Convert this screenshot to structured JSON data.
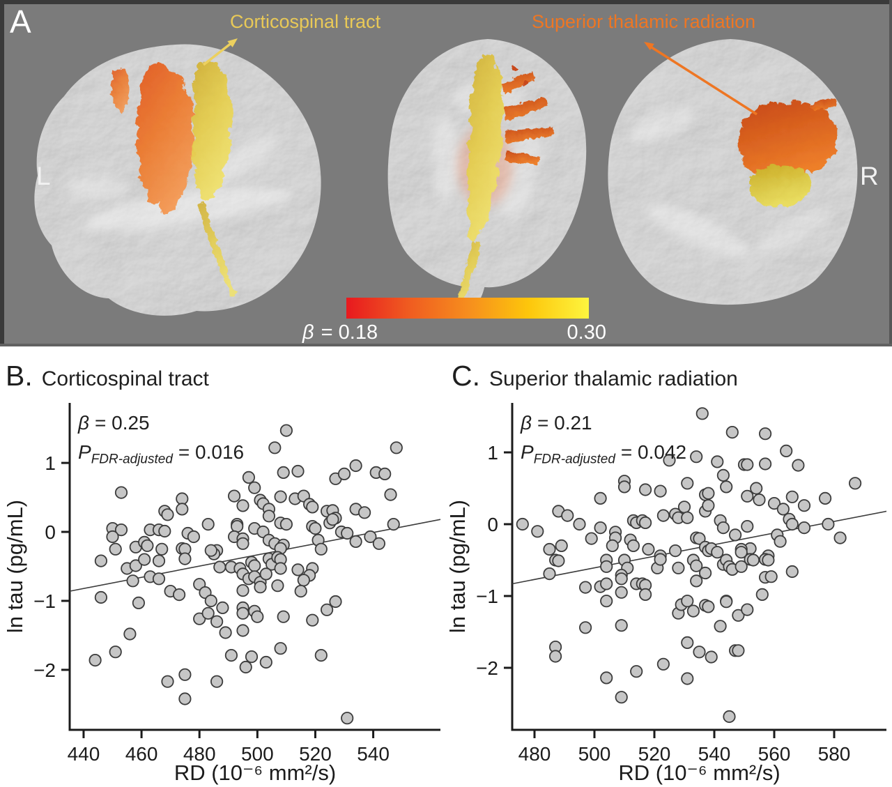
{
  "panel_a": {
    "label": "A",
    "left_marker": "L",
    "right_marker": "R",
    "background": "#7b7b7b",
    "tract_labels": [
      {
        "text": "Corticospinal tract",
        "color": "#e9c957"
      },
      {
        "text": "Superior thalamic radiation",
        "color": "#ee7623"
      }
    ],
    "colorbar": {
      "min_label_symbol": "β",
      "min_label_value": "= 0.18",
      "max_label": "0.30",
      "gradient": [
        "#e8191f",
        "#ef5a20",
        "#f68d1e",
        "#fdc60b",
        "#fdf53f"
      ]
    }
  },
  "panels": [
    {
      "letter": "B.",
      "title": "Corticospinal tract",
      "stats": {
        "beta_symbol": "β",
        "beta_value": "= 0.25",
        "p_symbol": "P",
        "p_subscript": "FDR-adjusted",
        "p_value": "= 0.016"
      }
    },
    {
      "letter": "C.",
      "title": "Superior thalamic radiation",
      "stats": {
        "beta_symbol": "β",
        "beta_value": "= 0.21",
        "p_symbol": "P",
        "p_subscript": "FDR-adjusted",
        "p_value": "= 0.042"
      }
    }
  ],
  "chart_data": [
    {
      "type": "scatter",
      "panel": "B",
      "title": "Corticospinal tract",
      "beta": 0.25,
      "p_fdr_adjusted": 0.016,
      "xlabel": "RD (10⁻⁶ mm²/s)",
      "ylabel": "ln tau (pg/mL)",
      "xlim": [
        435.2,
        563.2
      ],
      "ylim": [
        -2.87,
        1.87
      ],
      "x_ticks": [
        440,
        460,
        480,
        500,
        520,
        540
      ],
      "y_ticks": [
        1,
        0,
        -1,
        -2
      ],
      "legend": "none",
      "grid": false,
      "regression_line": {
        "x": [
          435.2,
          563.2
        ],
        "y": [
          -0.86,
          0.18
        ]
      },
      "style": {
        "point_fill": "#c6c6c6",
        "point_stroke": "#3c3c3c",
        "line_color": "#3c3c3c",
        "axis_color": "#1b1b1b"
      },
      "points": [
        [
          510,
          1.47
        ],
        [
          506,
          1.22
        ],
        [
          548,
          1.22
        ],
        [
          453,
          0.57
        ],
        [
          497,
          0.79
        ],
        [
          527,
          0.77
        ],
        [
          530,
          0.84
        ],
        [
          534,
          0.96
        ],
        [
          509,
          0.86
        ],
        [
          514,
          0.88
        ],
        [
          499,
          0.64
        ],
        [
          546,
          0.54
        ],
        [
          541,
          0.86
        ],
        [
          544,
          0.84
        ],
        [
          468,
          0.3
        ],
        [
          469,
          0.25
        ],
        [
          474,
          0.48
        ],
        [
          474,
          0.33
        ],
        [
          492,
          0.52
        ],
        [
          495,
          0.38
        ],
        [
          493,
          0.11
        ],
        [
          501,
          0.46
        ],
        [
          502,
          0.41
        ],
        [
          508,
          0.51
        ],
        [
          513,
          0.48
        ],
        [
          516,
          0.52
        ],
        [
          518,
          0.4
        ],
        [
          519,
          0.36
        ],
        [
          504,
          0.33
        ],
        [
          504,
          0.23
        ],
        [
          524,
          0.3
        ],
        [
          526,
          0.31
        ],
        [
          527,
          0.2
        ],
        [
          534,
          0.33
        ],
        [
          537,
          0.28
        ],
        [
          483,
          0.11
        ],
        [
          493,
          0.08
        ],
        [
          450,
          0.05
        ],
        [
          453,
          0.03
        ],
        [
          463,
          0.03
        ],
        [
          466,
          0.03
        ],
        [
          468,
          0.01
        ],
        [
          476,
          -0.02
        ],
        [
          478,
          -0.07
        ],
        [
          486,
          -0.27
        ],
        [
          485,
          -0.32
        ],
        [
          492,
          -0.07
        ],
        [
          495,
          -0.1
        ],
        [
          495,
          -0.17
        ],
        [
          499,
          0.05
        ],
        [
          502,
          0.0
        ],
        [
          508,
          0.13
        ],
        [
          510,
          0.11
        ],
        [
          519,
          0.08
        ],
        [
          520,
          0.05
        ],
        [
          525,
          0.13
        ],
        [
          526,
          0.18
        ],
        [
          529,
          0.0
        ],
        [
          531,
          -0.02
        ],
        [
          534,
          -0.14
        ],
        [
          539,
          -0.07
        ],
        [
          542,
          -0.17
        ],
        [
          547,
          0.11
        ],
        [
          450,
          -0.07
        ],
        [
          451,
          -0.25
        ],
        [
          458,
          -0.22
        ],
        [
          461,
          -0.15
        ],
        [
          462,
          -0.2
        ],
        [
          467,
          -0.25
        ],
        [
          474,
          -0.24
        ],
        [
          475,
          -0.25
        ],
        [
          484,
          -0.27
        ],
        [
          504,
          -0.12
        ],
        [
          506,
          -0.17
        ],
        [
          509,
          -0.19
        ],
        [
          508,
          -0.24
        ],
        [
          521,
          -0.12
        ],
        [
          522,
          -0.25
        ],
        [
          446,
          -0.42
        ],
        [
          455,
          -0.53
        ],
        [
          458,
          -0.49
        ],
        [
          461,
          -0.4
        ],
        [
          466,
          -0.42
        ],
        [
          475,
          -0.39
        ],
        [
          487,
          -0.51
        ],
        [
          491,
          -0.51
        ],
        [
          494,
          -0.53
        ],
        [
          495,
          -0.61
        ],
        [
          497,
          -0.68
        ],
        [
          498,
          -0.44
        ],
        [
          499,
          -0.49
        ],
        [
          499,
          -0.65
        ],
        [
          501,
          -0.73
        ],
        [
          501,
          -0.8
        ],
        [
          504,
          -0.39
        ],
        [
          505,
          -0.47
        ],
        [
          503,
          -0.61
        ],
        [
          507,
          -0.37
        ],
        [
          508,
          -0.4
        ],
        [
          508,
          -0.53
        ],
        [
          514,
          -0.55
        ],
        [
          519,
          -0.53
        ],
        [
          518,
          -0.63
        ],
        [
          516,
          -0.7
        ],
        [
          507,
          -0.78
        ],
        [
          515,
          -0.86
        ],
        [
          457,
          -0.71
        ],
        [
          463,
          -0.65
        ],
        [
          466,
          -0.68
        ],
        [
          446,
          -0.95
        ],
        [
          459,
          -1.03
        ],
        [
          470,
          -0.86
        ],
        [
          473,
          -0.91
        ],
        [
          480,
          -0.76
        ],
        [
          482,
          -0.88
        ],
        [
          484,
          -1.0
        ],
        [
          480,
          -1.26
        ],
        [
          483,
          -1.18
        ],
        [
          486,
          -1.3
        ],
        [
          488,
          -1.1
        ],
        [
          495,
          -0.85
        ],
        [
          495,
          -1.1
        ],
        [
          495,
          -1.18
        ],
        [
          499,
          -1.15
        ],
        [
          500,
          -1.23
        ],
        [
          489,
          -1.46
        ],
        [
          495,
          -1.43
        ],
        [
          509,
          -1.23
        ],
        [
          508,
          -1.69
        ],
        [
          519,
          -1.28
        ],
        [
          522,
          -1.79
        ],
        [
          524,
          -1.13
        ],
        [
          527,
          -1.01
        ],
        [
          456,
          -1.48
        ],
        [
          451,
          -1.74
        ],
        [
          444,
          -1.86
        ],
        [
          491,
          -1.79
        ],
        [
          498,
          -1.81
        ],
        [
          496,
          -1.96
        ],
        [
          503,
          -1.89
        ],
        [
          469,
          -2.17
        ],
        [
          475,
          -2.07
        ],
        [
          475,
          -2.42
        ],
        [
          486,
          -2.17
        ],
        [
          531,
          -2.7
        ]
      ]
    },
    {
      "type": "scatter",
      "panel": "C",
      "title": "Superior thalamic radiation",
      "beta": 0.21,
      "p_fdr_adjusted": 0.042,
      "xlabel": "RD (10⁻⁶ mm²/s)",
      "ylabel": "ln tau (pg/mL)",
      "xlim": [
        472.56,
        597.44
      ],
      "ylim": [
        -2.864,
        1.689
      ],
      "x_ticks": [
        480,
        500,
        520,
        540,
        560,
        580
      ],
      "y_ticks": [
        1,
        0,
        -1,
        -2
      ],
      "legend": "none",
      "grid": false,
      "regression_line": {
        "x": [
          472.56,
          597.44
        ],
        "y": [
          -0.83,
          0.18
        ]
      },
      "style": {
        "point_fill": "#c6c6c6",
        "point_stroke": "#3c3c3c",
        "line_color": "#3c3c3c",
        "axis_color": "#1b1b1b"
      },
      "points": [
        [
          536,
          1.54
        ],
        [
          546,
          1.28
        ],
        [
          557,
          1.26
        ],
        [
          564,
          1.02
        ],
        [
          525,
          0.89
        ],
        [
          534,
          0.94
        ],
        [
          541,
          0.87
        ],
        [
          550,
          0.83
        ],
        [
          551,
          0.83
        ],
        [
          557,
          0.84
        ],
        [
          568,
          0.82
        ],
        [
          587,
          0.57
        ],
        [
          510,
          0.6
        ],
        [
          510,
          0.52
        ],
        [
          517,
          0.48
        ],
        [
          522,
          0.46
        ],
        [
          531,
          0.57
        ],
        [
          537,
          0.41
        ],
        [
          538,
          0.43
        ],
        [
          543,
          0.68
        ],
        [
          544,
          0.52
        ],
        [
          551,
          0.39
        ],
        [
          554,
          0.5
        ],
        [
          555,
          0.34
        ],
        [
          560,
          0.29
        ],
        [
          563,
          0.21
        ],
        [
          566,
          0.38
        ],
        [
          570,
          0.26
        ],
        [
          577,
          0.36
        ],
        [
          502,
          0.36
        ],
        [
          488,
          0.18
        ],
        [
          491,
          0.12
        ],
        [
          495,
          0.0
        ],
        [
          476,
          0.0
        ],
        [
          481,
          -0.1
        ],
        [
          502,
          -0.05
        ],
        [
          507,
          -0.11
        ],
        [
          507,
          -0.19
        ],
        [
          513,
          0.05
        ],
        [
          514,
          0.02
        ],
        [
          516,
          0.05
        ],
        [
          517,
          0.02
        ],
        [
          523,
          0.12
        ],
        [
          527,
          0.14
        ],
        [
          528,
          0.09
        ],
        [
          530,
          0.24
        ],
        [
          531,
          0.09
        ],
        [
          537,
          0.18
        ],
        [
          538,
          0.26
        ],
        [
          542,
          0.05
        ],
        [
          543,
          -0.05
        ],
        [
          551,
          -0.03
        ],
        [
          552,
          -0.34
        ],
        [
          561,
          -0.15
        ],
        [
          562,
          -0.24
        ],
        [
          565,
          0.07
        ],
        [
          566,
          0.0
        ],
        [
          570,
          -0.05
        ],
        [
          578,
          0.0
        ],
        [
          582,
          -0.19
        ],
        [
          485,
          -0.35
        ],
        [
          489,
          -0.3
        ],
        [
          499,
          -0.2
        ],
        [
          506,
          -0.3
        ],
        [
          512,
          -0.22
        ],
        [
          513,
          -0.3
        ],
        [
          518,
          -0.35
        ],
        [
          522,
          -0.44
        ],
        [
          527,
          -0.37
        ],
        [
          534,
          -0.19
        ],
        [
          535,
          -0.2
        ],
        [
          537,
          -0.32
        ],
        [
          538,
          -0.37
        ],
        [
          539,
          -0.34
        ],
        [
          541,
          -0.39
        ],
        [
          547,
          -0.15
        ],
        [
          549,
          -0.35
        ],
        [
          549,
          -0.39
        ],
        [
          558,
          -0.44
        ],
        [
          487,
          -0.5
        ],
        [
          488,
          -0.51
        ],
        [
          485,
          -0.69
        ],
        [
          504,
          -0.5
        ],
        [
          504,
          -0.59
        ],
        [
          510,
          -0.5
        ],
        [
          511,
          -0.61
        ],
        [
          509,
          -0.71
        ],
        [
          509,
          -0.76
        ],
        [
          497,
          -0.88
        ],
        [
          502,
          -0.87
        ],
        [
          504,
          -0.83
        ],
        [
          514,
          -0.83
        ],
        [
          516,
          -0.83
        ],
        [
          517,
          -0.85
        ],
        [
          517,
          -0.98
        ],
        [
          509,
          -0.95
        ],
        [
          504,
          -1.07
        ],
        [
          521,
          -0.61
        ],
        [
          522,
          -0.49
        ],
        [
          528,
          -0.61
        ],
        [
          533,
          -0.5
        ],
        [
          534,
          -0.58
        ],
        [
          537,
          -0.68
        ],
        [
          534,
          -0.79
        ],
        [
          537,
          -1.13
        ],
        [
          538,
          -1.15
        ],
        [
          528,
          -1.24
        ],
        [
          529,
          -1.12
        ],
        [
          531,
          -1.07
        ],
        [
          533,
          -1.21
        ],
        [
          543,
          -0.56
        ],
        [
          544,
          -0.5
        ],
        [
          545,
          -0.59
        ],
        [
          546,
          -0.63
        ],
        [
          549,
          -0.59
        ],
        [
          552,
          -0.49
        ],
        [
          553,
          -0.5
        ],
        [
          544,
          -1.07
        ],
        [
          544,
          -1.08
        ],
        [
          542,
          -1.42
        ],
        [
          548,
          -1.27
        ],
        [
          551,
          -1.19
        ],
        [
          556,
          -0.98
        ],
        [
          557,
          -0.74
        ],
        [
          559,
          -0.73
        ],
        [
          557,
          -0.49
        ],
        [
          558,
          -0.5
        ],
        [
          566,
          -0.66
        ],
        [
          497,
          -1.44
        ],
        [
          509,
          -1.41
        ],
        [
          487,
          -1.71
        ],
        [
          487,
          -1.84
        ],
        [
          531,
          -1.65
        ],
        [
          535,
          -1.78
        ],
        [
          539,
          -1.85
        ],
        [
          547,
          -1.76
        ],
        [
          548,
          -1.76
        ],
        [
          523,
          -1.95
        ],
        [
          514,
          -2.05
        ],
        [
          504,
          -2.14
        ],
        [
          531,
          -2.15
        ],
        [
          509,
          -2.41
        ],
        [
          545,
          -2.68
        ]
      ]
    }
  ]
}
